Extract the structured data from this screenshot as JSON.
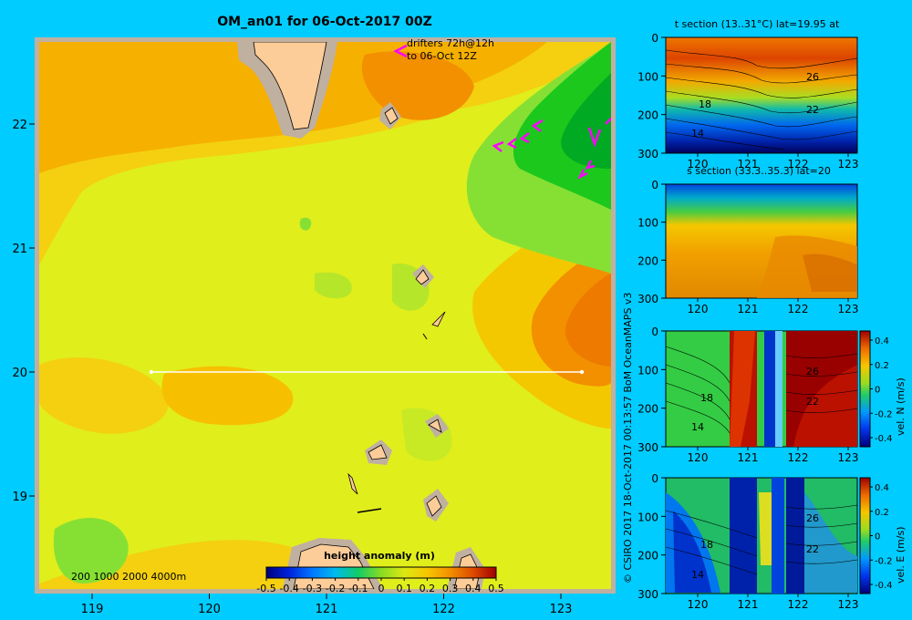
{
  "title": "OM_an01 for 06-Oct-2017 00Z",
  "credit": "© CSIRO 2017   18-Oct-2017 00:13:57 BoM OceanMAPS v3",
  "main_map": {
    "lon_ticks": [
      "119",
      "120",
      "121",
      "122",
      "123"
    ],
    "lat_ticks": [
      "22",
      "21",
      "20",
      "19"
    ],
    "drifters_line1": "drifters 72h@12h",
    "drifters_line2": "to 06-Oct 12Z",
    "depth_legend": "200  1000  2000  4000m",
    "colorbar_title": "height anomaly  (m)",
    "colorbar_ticks": [
      "-0.5",
      "-0.4",
      "-0.3",
      "-0.2",
      "-0.1",
      "0",
      "0.1",
      "0.2",
      "0.3",
      "0.4",
      "0.5"
    ],
    "section_lat": 20
  },
  "panels": [
    {
      "title": "t section (13..31°C) lat=19.95 at",
      "x_ticks": [
        "120",
        "121",
        "122",
        "123"
      ],
      "y_ticks": [
        "0",
        "100",
        "200",
        "300"
      ],
      "contour_labels": [
        "26",
        "18",
        "22",
        "14"
      ],
      "colorbar_label": "",
      "colorbar_ticks": []
    },
    {
      "title": "s section (33.3..35.3) lat=20",
      "x_ticks": [
        "120",
        "121",
        "122",
        "123"
      ],
      "y_ticks": [
        "0",
        "100",
        "200",
        "300"
      ],
      "contour_labels": [],
      "colorbar_label": "",
      "colorbar_ticks": []
    },
    {
      "title": "",
      "x_ticks": [
        "120",
        "121",
        "122",
        "123"
      ],
      "y_ticks": [
        "0",
        "100",
        "200",
        "300"
      ],
      "contour_labels": [
        "26",
        "18",
        "22",
        "14"
      ],
      "colorbar_label": "vel. N (m/s)",
      "colorbar_ticks": [
        "0.4",
        "0.2",
        "0",
        "-0.2",
        "-0.4"
      ]
    },
    {
      "title": "",
      "x_ticks": [
        "120",
        "121",
        "122",
        "123"
      ],
      "y_ticks": [
        "0",
        "100",
        "200",
        "300"
      ],
      "contour_labels": [
        "26",
        "18",
        "22",
        "14"
      ],
      "colorbar_label": "vel. E (m/s)",
      "colorbar_ticks": [
        "0.4",
        "0.2",
        "0",
        "-0.2",
        "-0.4"
      ]
    }
  ],
  "colors": {
    "background": "#00ccff",
    "field_base": "#e0ee1c",
    "field_orange": "#f6b000",
    "field_light_orange": "#f4d010",
    "field_green": "#1cc81c",
    "field_light_green": "#86e034",
    "land": "#fccc99",
    "shelf": "#c0b0a0",
    "drifter": "#ff00ff"
  }
}
